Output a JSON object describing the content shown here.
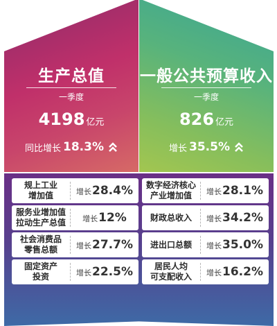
{
  "panels": {
    "left": {
      "title": "生产总值",
      "period": "一季度",
      "value": "4198",
      "unit": "亿元",
      "growth_label": "同比增长",
      "growth_value": "18.3%",
      "icon": "double-chevron-up-icon"
    },
    "right": {
      "title": "一般公共预算收入",
      "period": "一季度",
      "value": "826",
      "unit": "亿元",
      "growth_label": "增长",
      "growth_value": "35.5%",
      "icon": "double-chevron-up-icon"
    }
  },
  "indicators": [
    {
      "line1": "规上工业",
      "line2": "增加值",
      "growth_label": "增长",
      "growth_value": "28.4%"
    },
    {
      "line1": "数字经济核心",
      "line2": "产业增加值",
      "growth_label": "增长",
      "growth_value": "28.1%"
    },
    {
      "line1": "服务业增加值",
      "line2": "拉动生产总值",
      "growth_label": "增长",
      "growth_value": "12%"
    },
    {
      "line1": "财政总收入",
      "line2": "",
      "growth_label": "增长",
      "growth_value": "34.2%"
    },
    {
      "line1": "社会消费品",
      "line2": "零售总额",
      "growth_label": "增长",
      "growth_value": "27.7%"
    },
    {
      "line1": "进出口总额",
      "line2": "",
      "growth_label": "增长",
      "growth_value": "35.0%"
    },
    {
      "line1": "固定资产",
      "line2": "投资",
      "growth_label": "增长",
      "growth_value": "22.5%"
    },
    {
      "line1": "居民人均",
      "line2": "可支配收入",
      "growth_label": "增长",
      "growth_value": "16.2%"
    }
  ],
  "colors": {
    "left_panel": "#c0306a",
    "right_panel": "#58b37c",
    "bottom_top": "#6a2f86",
    "bottom_bottom": "#3e6aa6"
  }
}
